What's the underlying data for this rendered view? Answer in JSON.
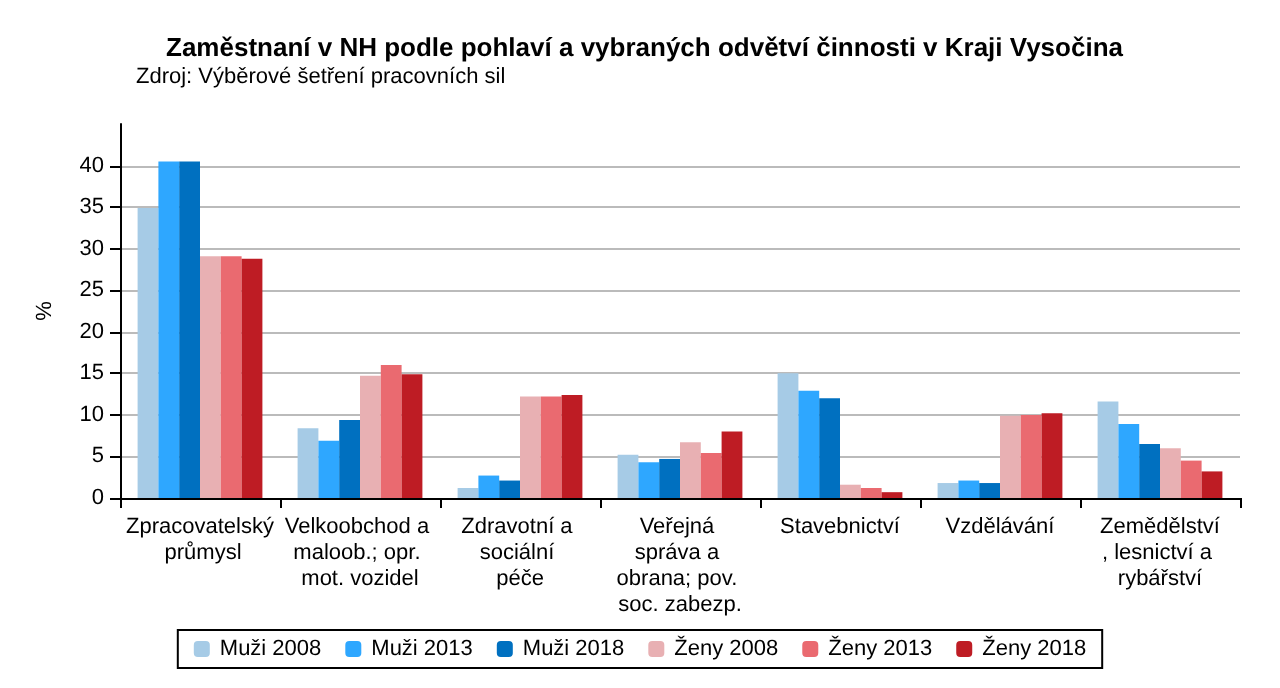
{
  "chart_data": {
    "type": "bar",
    "title": "Zaměstnaní v NH podle pohlaví a vybraných odvětví činnosti v Kraji Vysočina",
    "annotations": [
      "Zdroj: Výběrové šetření pracovních sil"
    ],
    "ylabel": "%",
    "categories": [
      "Zpracovatelský průmysl",
      "Velkoobchod a maloob.; opr. mot. vozidel",
      "Zdravotní a sociální péče",
      "Veřejná správa a obrana; pov. soc. zabezp.",
      "Stavebnictví",
      "Vzdělávání",
      "Zemědělství, lesnictví a rybářství"
    ],
    "series": [
      {
        "name": "Muži 2008",
        "color": "#a6cbe6",
        "values": [
          34.9,
          8.4,
          1.2,
          5.2,
          15.0,
          1.8,
          11.6
        ]
      },
      {
        "name": "Muži 2013",
        "color": "#2ea7ff",
        "values": [
          40.5,
          6.9,
          2.7,
          4.3,
          12.9,
          2.1,
          8.9
        ]
      },
      {
        "name": "Muži 2018",
        "color": "#0070c0",
        "values": [
          40.5,
          9.4,
          2.1,
          4.7,
          12.0,
          1.8,
          6.5
        ]
      },
      {
        "name": "Ženy 2008",
        "color": "#e8b0b3",
        "values": [
          29.1,
          14.7,
          12.2,
          6.7,
          1.6,
          9.9,
          6.0
        ]
      },
      {
        "name": "Ženy 2013",
        "color": "#ea6a70",
        "values": [
          29.1,
          16.0,
          12.2,
          5.4,
          1.2,
          10.0,
          4.5
        ]
      },
      {
        "name": "Ženy 2018",
        "color": "#be1c24",
        "values": [
          28.8,
          14.9,
          12.4,
          8.0,
          0.7,
          10.2,
          3.2
        ]
      }
    ],
    "ylim": [
      0,
      45
    ],
    "yticks": [
      0,
      5,
      10,
      15,
      20,
      25,
      30,
      35,
      40
    ],
    "grid": "y",
    "legend": "bottom"
  }
}
